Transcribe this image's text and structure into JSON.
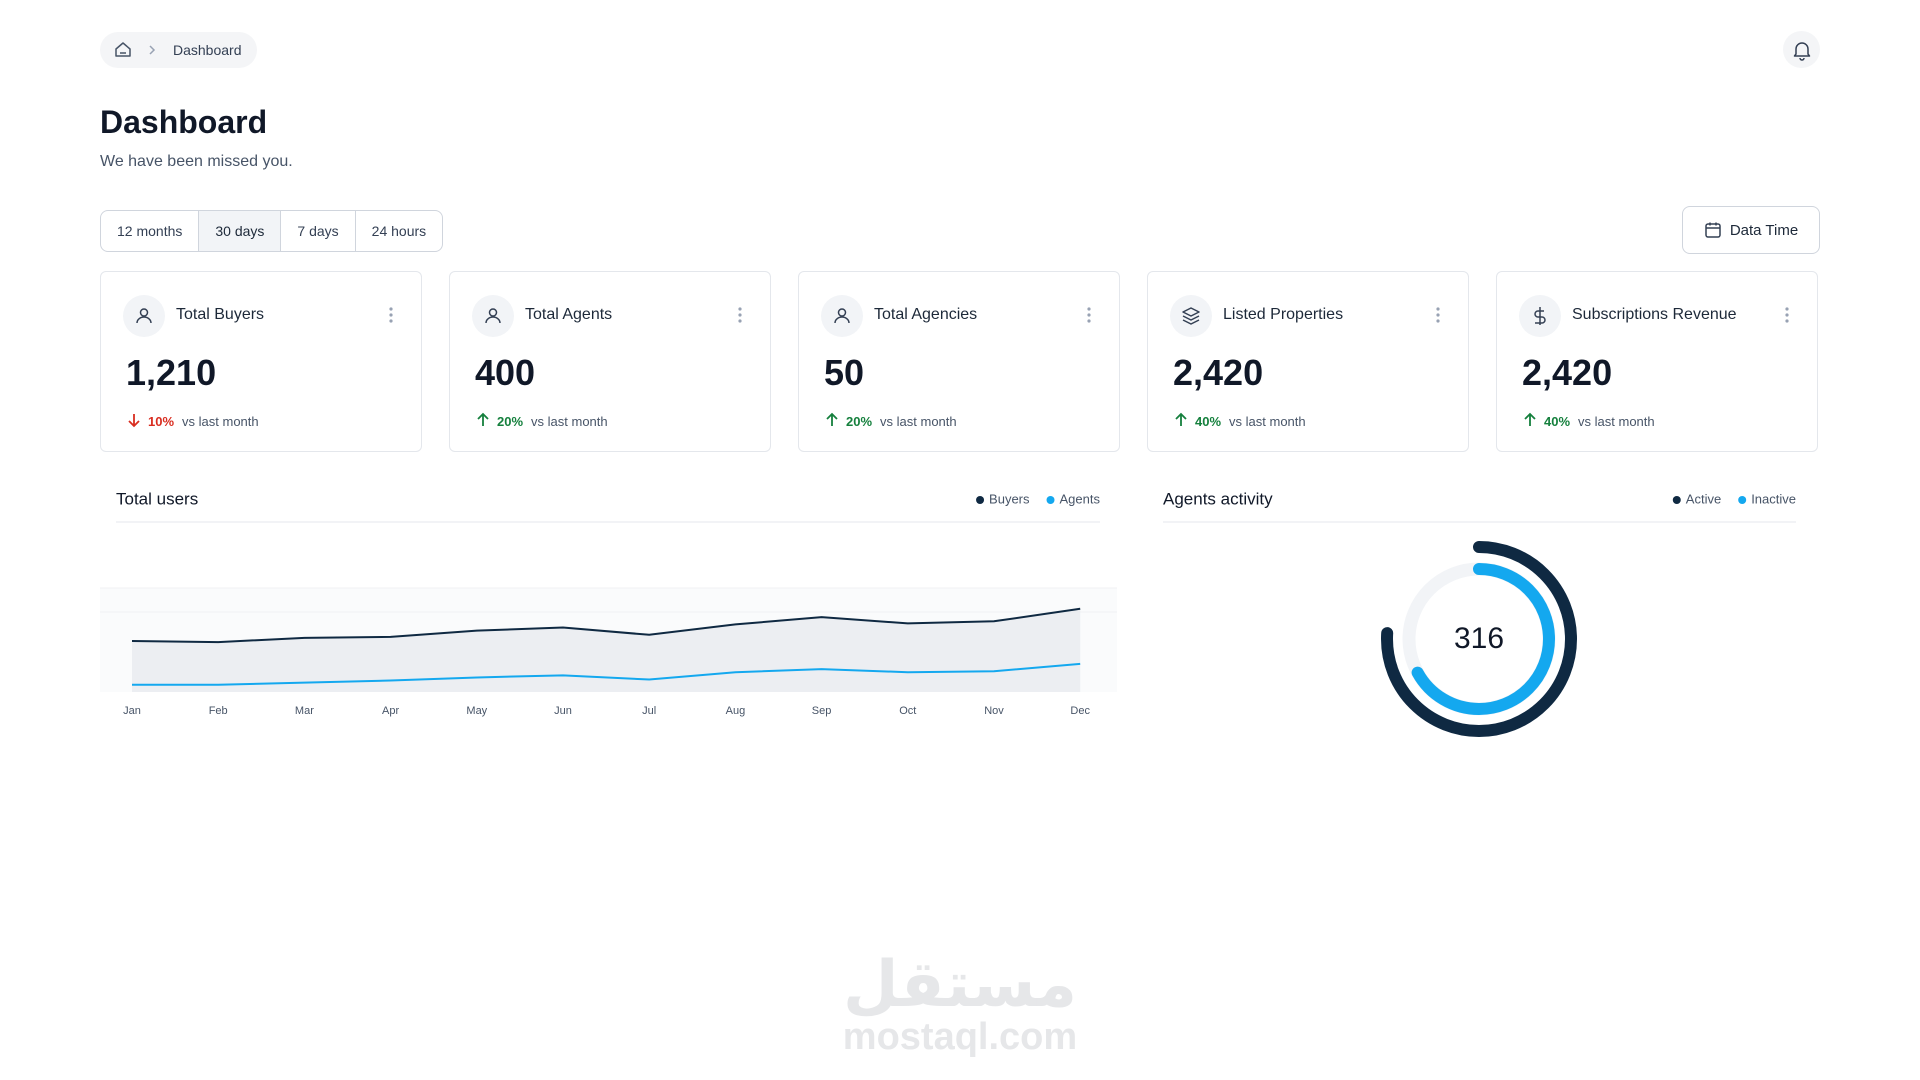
{
  "header": {
    "breadcrumb": "Dashboard",
    "title": "Dashboard",
    "subtitle": "We have been missed you."
  },
  "filters": [
    "12 months",
    "30 days",
    "7 days",
    "24 hours"
  ],
  "active_filter": 1,
  "date_button": "Data Time",
  "cards": [
    {
      "title": "Total Buyers",
      "value": "1,210",
      "change": "10%",
      "trend": "down",
      "note": "vs last month"
    },
    {
      "title": "Total Agents",
      "value": "400",
      "change": "20%",
      "trend": "up",
      "note": "vs last month"
    },
    {
      "title": "Total Agencies",
      "value": "50",
      "change": "20%",
      "trend": "up",
      "note": "vs last month"
    },
    {
      "title": "Listed Properties",
      "value": "2,420",
      "change": "40%",
      "trend": "up",
      "note": "vs last month"
    },
    {
      "title": "Subscriptions Revenue",
      "value": "2,420",
      "change": "40%",
      "trend": "up",
      "note": "vs last month"
    }
  ],
  "chart_data": [
    {
      "type": "line",
      "title": "Total users",
      "categories": [
        "Jan",
        "Feb",
        "Mar",
        "Apr",
        "May",
        "Jun",
        "Jul",
        "Aug",
        "Sep",
        "Oct",
        "Nov",
        "Dec"
      ],
      "ylim": [
        0,
        100
      ],
      "series": [
        {
          "name": "Buyers",
          "color": "#0f2942",
          "values": [
            49,
            48,
            52,
            53,
            59,
            62,
            55,
            65,
            72,
            66,
            68,
            80
          ]
        },
        {
          "name": "Agents",
          "color": "#14a8ef",
          "values": [
            7,
            7,
            9,
            11,
            14,
            16,
            12,
            19,
            22,
            19,
            20,
            27
          ]
        }
      ]
    },
    {
      "type": "donut",
      "title": "Agents activity",
      "center_label": "316",
      "range": [
        0,
        100
      ],
      "series": [
        {
          "name": "Active",
          "color": "#0f2942",
          "value": 76
        },
        {
          "name": "Inactive",
          "color": "#14a8ef",
          "value": 67
        }
      ]
    }
  ],
  "watermark": {
    "logo": "مستقل",
    "text": "mostaql.com"
  }
}
